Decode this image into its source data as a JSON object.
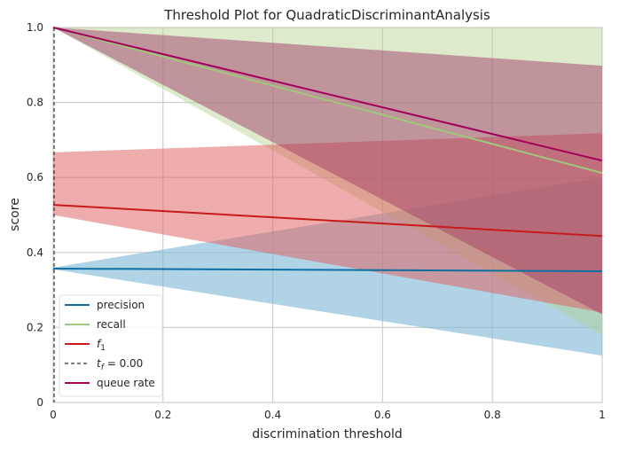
{
  "chart_data": {
    "type": "line",
    "title": "Threshold Plot for QuadraticDiscriminantAnalysis",
    "xlabel": "discrimination threshold",
    "ylabel": "score",
    "xlim": [
      0,
      1
    ],
    "ylim": [
      0,
      1
    ],
    "xticks": [
      "0",
      "0.2",
      "0.4",
      "0.6",
      "0.8",
      "1"
    ],
    "xtick_values": [
      0,
      0.2,
      0.4,
      0.6,
      0.8,
      1
    ],
    "yticks": [
      "0",
      "0.2",
      "0.4",
      "0.6",
      "0.8",
      "1.0"
    ],
    "ytick_values": [
      0,
      0.2,
      0.4,
      0.6,
      0.8,
      1.0
    ],
    "grid": true,
    "legend_position": "lower-left",
    "x": [
      0,
      1
    ],
    "series": [
      {
        "name": "precision",
        "color": "#0e6fa4",
        "values": [
          0.357,
          0.35
        ],
        "band_low": [
          0.355,
          0.125
        ],
        "band_high": [
          0.36,
          0.6
        ],
        "band_color": "#7bb8d4",
        "band_opacity": 0.6
      },
      {
        "name": "recall",
        "color": "#9fc87a",
        "values": [
          1.0,
          0.612
        ],
        "band_low": [
          1.0,
          0.18
        ],
        "band_high": [
          1.0,
          1.0
        ],
        "band_color": "#b3d18f",
        "band_opacity": 0.45
      },
      {
        "name": "f_1",
        "color": "#c71a1a",
        "values": [
          0.527,
          0.444
        ],
        "band_low": [
          0.5,
          0.24
        ],
        "band_high": [
          0.667,
          0.718
        ],
        "band_color": "#df5a5a",
        "band_opacity": 0.5
      },
      {
        "name": "queue rate",
        "color": "#a3005d",
        "values": [
          1.0,
          0.645
        ],
        "band_low": [
          1.0,
          0.235
        ],
        "band_high": [
          1.0,
          0.898
        ],
        "band_color": "#a23e67",
        "band_opacity": 0.5
      }
    ],
    "threshold": {
      "name": "t_f = 0.00",
      "x": 0.0,
      "color": "#333333",
      "style": "dashed"
    },
    "legend": [
      {
        "label": "precision",
        "kind": "line",
        "color": "#0e6fa4"
      },
      {
        "label": "recall",
        "kind": "line",
        "color": "#9fc87a"
      },
      {
        "label": "f",
        "sub": "1",
        "kind": "line",
        "color": "#c71a1a"
      },
      {
        "label": "t",
        "sub": "f",
        "suffix": " = 0.00",
        "kind": "dashed",
        "color": "#333333"
      },
      {
        "label": "queue rate",
        "kind": "line",
        "color": "#a3005d"
      }
    ]
  }
}
